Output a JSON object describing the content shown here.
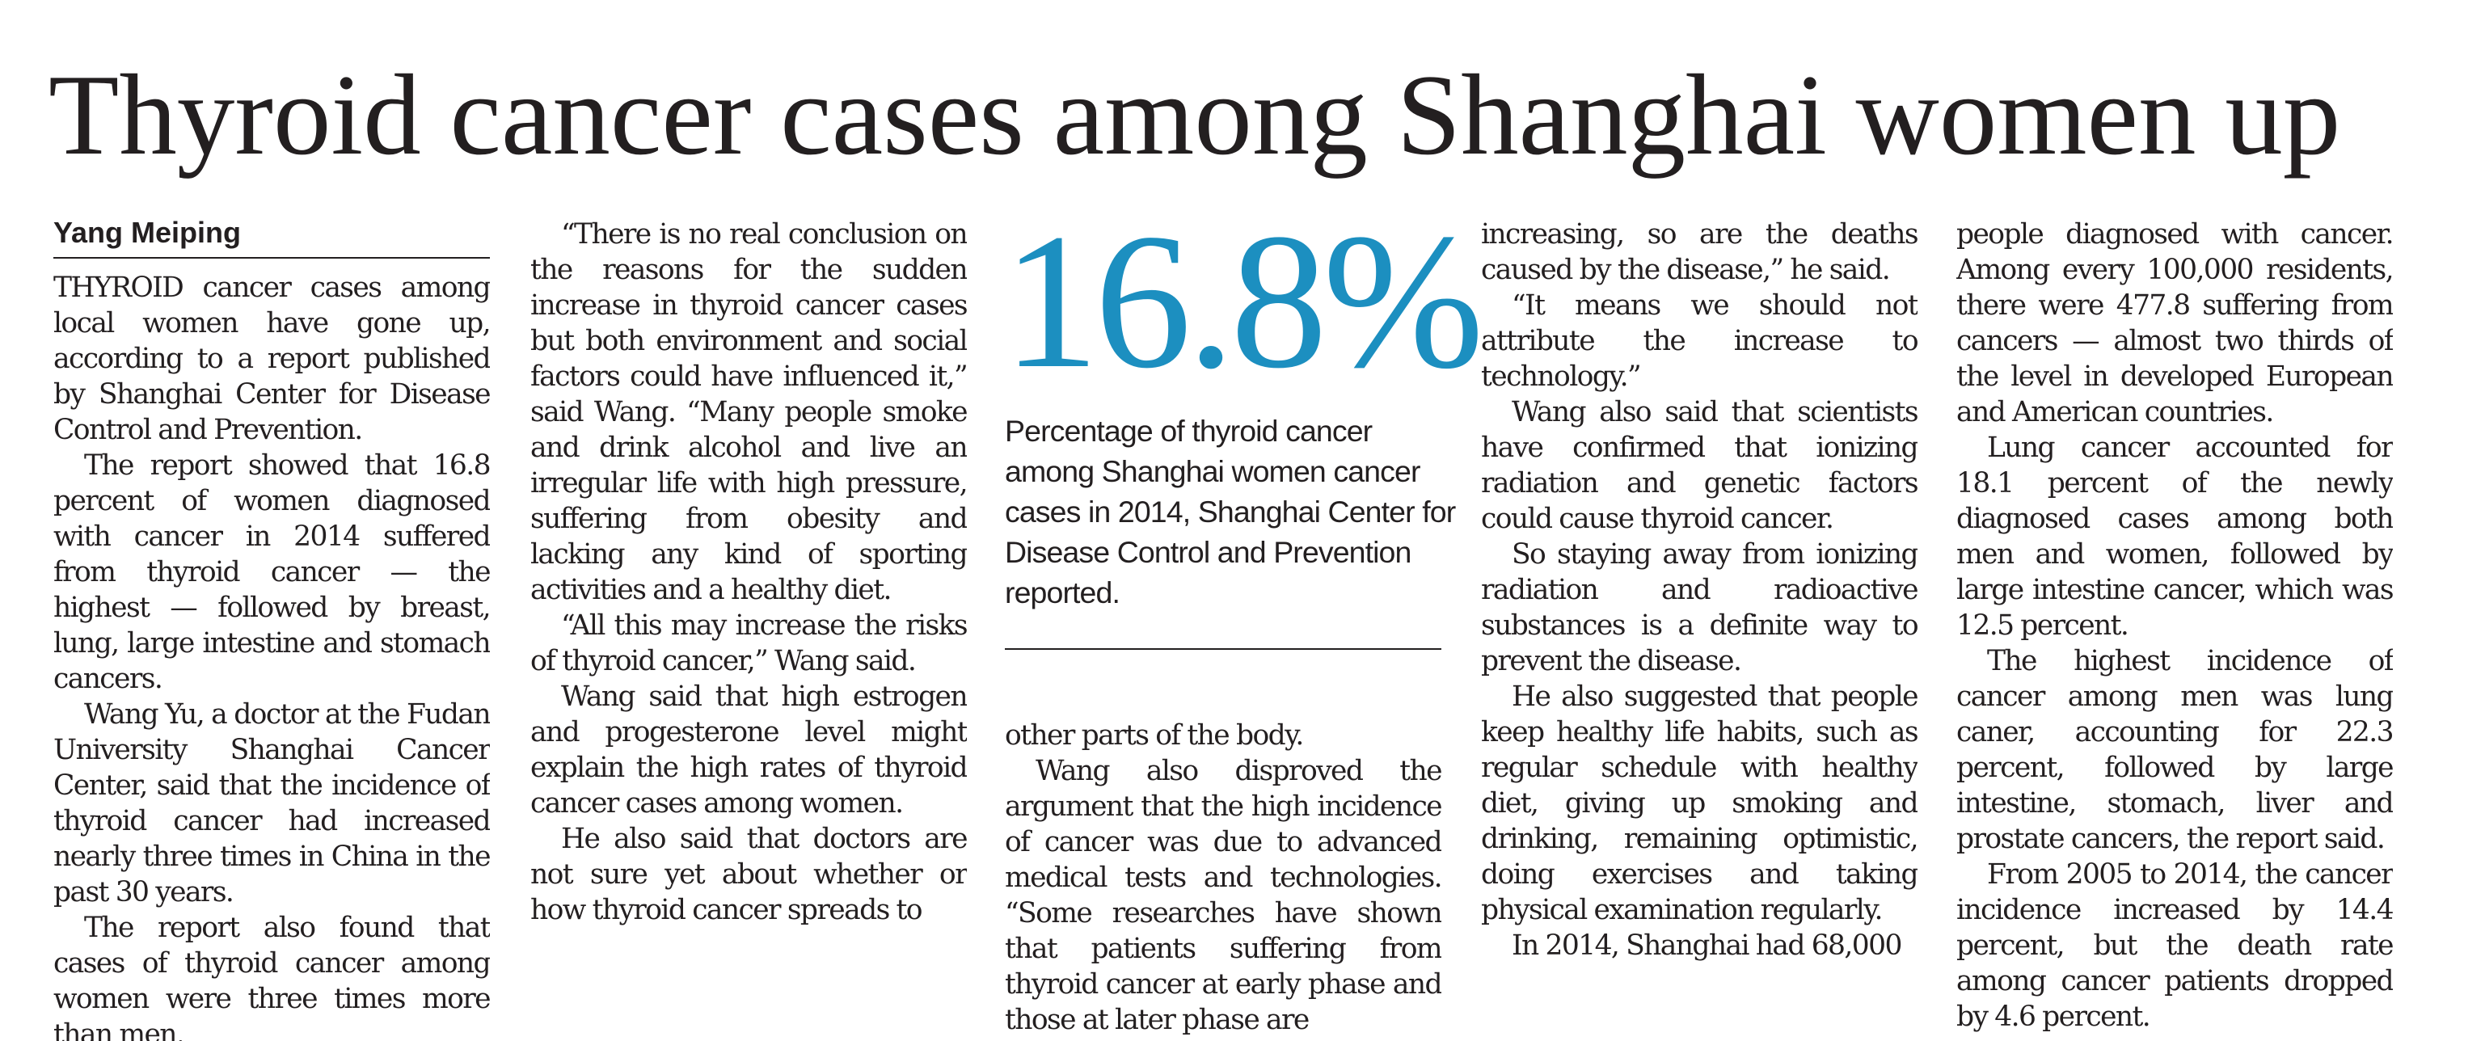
{
  "headline": "Thyroid cancer cases among Shanghai women up",
  "byline": "Yang Meiping",
  "pullout": {
    "value": "16.8%",
    "caption": "Percentage of thyroid cancer among Shanghai women cancer cases in 2014, Shanghai Center for Disease Control and Prevention reported."
  },
  "column1": [
    "THYROID cancer cases among local women have gone up, according to a report published by Shanghai Center for Disease Control and Prevention.",
    "The report showed that 16.8 percent of women diagnosed with cancer in 2014 suffered from thyroid cancer — the highest — followed by breast, lung, large intestine and stomach cancers.",
    "Wang Yu, a doctor at the Fudan University Shanghai Cancer Center, said that the incidence of thyroid cancer had increased nearly three times in China in the past 30 years.",
    "The report also found that cases of thyroid cancer among women were three times more than men."
  ],
  "column2": [
    "“There is no real conclusion on the reasons for the sudden increase in thyroid cancer cases but both environment and social factors could have influenced it,” said Wang. “Many people smoke and drink alcohol and live an irregular life with high pressure, suffering from obesity and lacking any kind of sporting activities and a healthy diet.",
    "“All this may increase the risks of thyroid cancer,” Wang said.",
    "Wang said that high estrogen and progesterone level might explain the high rates of thyroid cancer cases among women.",
    "He also said that doctors are not sure yet about whether or how thyroid cancer spreads to"
  ],
  "column3": [
    "other parts of the body.",
    "Wang also disproved the argument that the high incidence of cancer was due to advanced medical tests and technologies. “Some researches have shown that patients suffering from thyroid cancer at early phase and those at later phase are"
  ],
  "column4": [
    "increasing, so are the deaths caused by the disease,” he said.",
    "“It means we should not attribute the increase to technology.”",
    "Wang also said that scientists have confirmed that ionizing radiation and genetic factors could cause thyroid cancer.",
    "So staying away from ionizing radiation and radioactive substances is a definite way to prevent the disease.",
    "He also suggested that people keep healthy life habits, such as regular schedule with healthy diet, giving up smoking and drinking, remaining optimistic, doing exercises and taking physical examination regularly.",
    "In 2014, Shanghai had 68,000"
  ],
  "column5": [
    "people diagnosed with cancer. Among every 100,000 residents, there were 477.8 suffering from cancers — almost two thirds of the level in developed European and American countries.",
    "Lung cancer accounted for 18.1 percent of the newly diagnosed cases among both men and women, followed by large intestine cancer, which was 12.5 percent.",
    "The highest incidence of cancer among men was lung caner, accounting for 22.3 percent, followed by large intestine, stomach, liver and prostate cancers, the report said.",
    "From 2005 to 2014, the cancer incidence increased by 14.4 percent, but the death rate among cancer patients dropped by 4.6 percent."
  ]
}
